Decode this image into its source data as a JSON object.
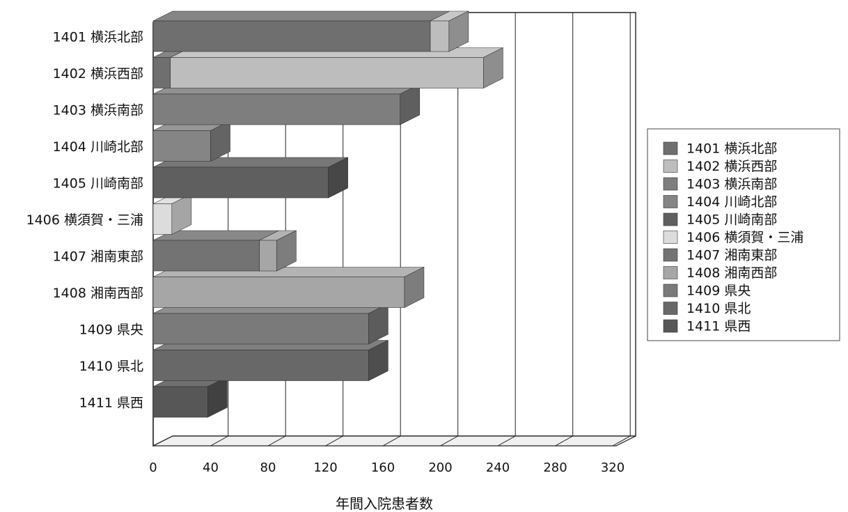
{
  "chart_data": {
    "type": "bar",
    "orientation": "horizontal",
    "stacked": true,
    "three_d": true,
    "title": "",
    "xlabel": "年間入院患者数",
    "ylabel": "",
    "xlim": [
      0,
      320
    ],
    "x_ticks": [
      0,
      40,
      80,
      120,
      160,
      200,
      240,
      280,
      320
    ],
    "grid": true,
    "legend_position": "right",
    "categories": [
      "1401 横浜北部",
      "1402 横浜西部",
      "1403 横浜南部",
      "1404 川崎北部",
      "1405 川崎南部",
      "1406 横須賀・三浦",
      "1407 湘南東部",
      "1408 湘南西部",
      "1409 県央",
      "1410 県北",
      "1411 県西"
    ],
    "series": [
      {
        "name": "1401 横浜北部",
        "color": "#6f6f6f",
        "values": [
          193,
          12,
          0,
          0,
          0,
          0,
          0,
          0,
          0,
          0,
          0
        ]
      },
      {
        "name": "1402 横浜西部",
        "color": "#bdbdbd",
        "values": [
          13,
          218,
          0,
          0,
          0,
          0,
          0,
          0,
          0,
          0,
          0
        ]
      },
      {
        "name": "1403 横浜南部",
        "color": "#7e7e7e",
        "values": [
          0,
          0,
          172,
          0,
          0,
          0,
          0,
          0,
          0,
          0,
          0
        ]
      },
      {
        "name": "1404 川崎北部",
        "color": "#858585",
        "values": [
          0,
          0,
          0,
          40,
          0,
          0,
          0,
          0,
          0,
          0,
          0
        ]
      },
      {
        "name": "1405 川崎南部",
        "color": "#5f5f5f",
        "values": [
          0,
          0,
          0,
          0,
          122,
          0,
          0,
          0,
          0,
          0,
          0
        ]
      },
      {
        "name": "1406 横須賀・三浦",
        "color": "#dcdcdc",
        "values": [
          0,
          0,
          0,
          0,
          0,
          13,
          0,
          0,
          0,
          0,
          0
        ]
      },
      {
        "name": "1407 湘南東部",
        "color": "#737373",
        "values": [
          0,
          0,
          0,
          0,
          0,
          0,
          74,
          0,
          0,
          0,
          0
        ]
      },
      {
        "name": "1408 湘南西部",
        "color": "#a6a6a6",
        "values": [
          0,
          0,
          0,
          0,
          0,
          0,
          12,
          175,
          0,
          0,
          0
        ]
      },
      {
        "name": "1409 県央",
        "color": "#7a7a7a",
        "values": [
          0,
          0,
          0,
          0,
          0,
          0,
          0,
          0,
          150,
          0,
          0
        ]
      },
      {
        "name": "1410 県北",
        "color": "#686868",
        "values": [
          0,
          0,
          0,
          0,
          0,
          0,
          0,
          0,
          0,
          150,
          0
        ]
      },
      {
        "name": "1411 県西",
        "color": "#575757",
        "values": [
          0,
          0,
          0,
          0,
          0,
          0,
          0,
          0,
          0,
          0,
          38
        ]
      }
    ]
  }
}
